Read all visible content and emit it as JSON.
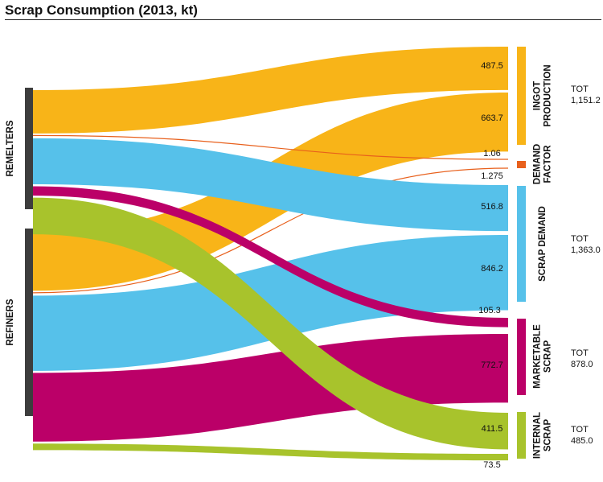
{
  "title": "Scrap Consumption (2013, kt)",
  "sources": [
    "REMELTERS",
    "REFINERS"
  ],
  "targets": [
    {
      "label_lines": [
        "INGOT",
        "PRODUCTION"
      ],
      "total_lines": [
        "TOT",
        "1,151.2"
      ],
      "color": "#f8b418"
    },
    {
      "label_lines": [
        "DEMAND",
        "FACTOR"
      ],
      "total_lines": [],
      "color": "#e8601c"
    },
    {
      "label_lines": [
        "SCRAP DEMAND"
      ],
      "total_lines": [
        "TOT",
        "1,363.0"
      ],
      "color": "#56c1ea"
    },
    {
      "label_lines": [
        "MARKETABLE",
        "SCRAP"
      ],
      "total_lines": [
        "TOT",
        "878.0"
      ],
      "color": "#bb0068"
    },
    {
      "label_lines": [
        "INTERNAL",
        "SCRAP"
      ],
      "total_lines": [
        "TOT",
        "485.0"
      ],
      "color": "#a8c32c"
    }
  ],
  "chart_data": {
    "type": "sankey",
    "units": "kt",
    "flows": [
      {
        "source": "REMELTERS",
        "target": "INGOT PRODUCTION",
        "value": 487.5,
        "label": "487.5",
        "color": "#f8b418"
      },
      {
        "source": "REFINERS",
        "target": "INGOT PRODUCTION",
        "value": 663.7,
        "label": "663.7",
        "color": "#f8b418"
      },
      {
        "source": "REMELTERS",
        "target": "DEMAND FACTOR",
        "value": 1.06,
        "label": "1.06",
        "color": "#e8601c"
      },
      {
        "source": "REFINERS",
        "target": "DEMAND FACTOR",
        "value": 1.275,
        "label": "1.275",
        "color": "#e8601c"
      },
      {
        "source": "REMELTERS",
        "target": "SCRAP DEMAND",
        "value": 516.8,
        "label": "516.8",
        "color": "#56c1ea"
      },
      {
        "source": "REFINERS",
        "target": "SCRAP DEMAND",
        "value": 846.2,
        "label": "846.2",
        "color": "#56c1ea"
      },
      {
        "source": "REMELTERS",
        "target": "MARKETABLE SCRAP",
        "value": 105.3,
        "label": "105.3",
        "color": "#bb0068"
      },
      {
        "source": "REFINERS",
        "target": "MARKETABLE SCRAP",
        "value": 772.7,
        "label": "772.7",
        "color": "#bb0068"
      },
      {
        "source": "REMELTERS",
        "target": "INTERNAL SCRAP",
        "value": 411.5,
        "label": "411.5",
        "color": "#a8c32c"
      },
      {
        "source": "REFINERS",
        "target": "INTERNAL SCRAP",
        "value": 73.5,
        "label": "73.5",
        "color": "#a8c32c"
      }
    ]
  }
}
